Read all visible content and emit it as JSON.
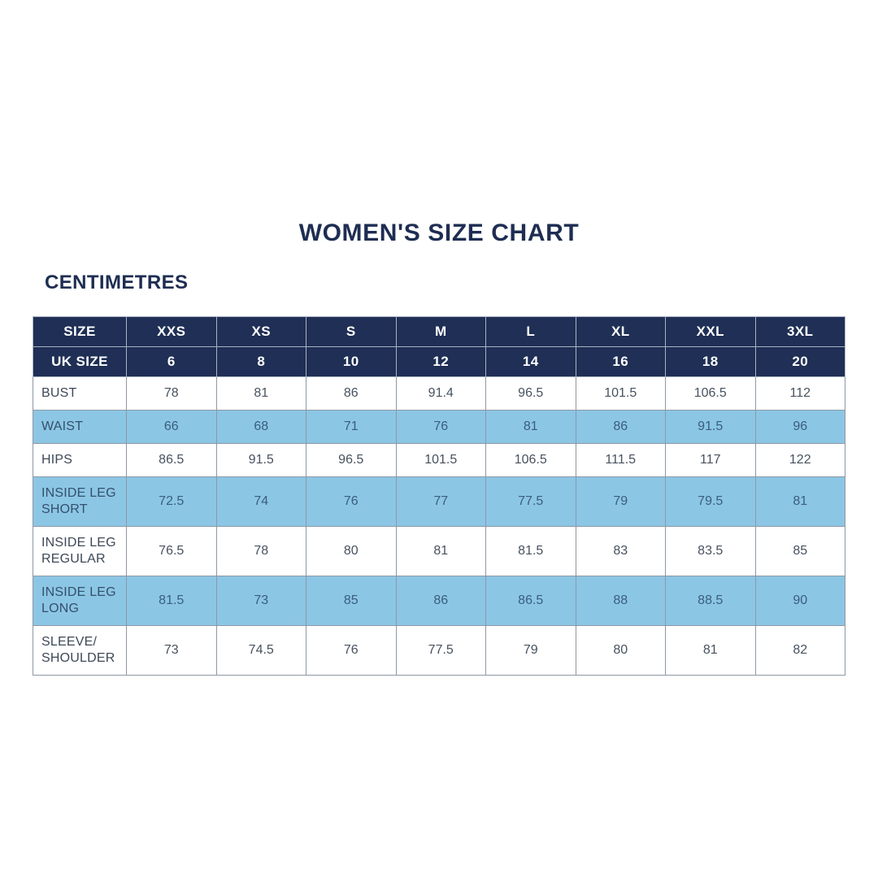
{
  "title": "WOMEN'S SIZE CHART",
  "units_label": "CENTIMETRES",
  "colors": {
    "header_navy": "#1f2f55",
    "highlight_blue": "#8cc6e5",
    "title_text": "#1e2d52",
    "body_text": "#47525f",
    "border": "#8e98a4"
  },
  "chart_data": {
    "type": "table",
    "title": "WOMEN'S SIZE CHART",
    "units": "CENTIMETRES",
    "header_rows": [
      [
        "SIZE",
        "XXS",
        "XS",
        "S",
        "M",
        "L",
        "XL",
        "XXL",
        "3XL"
      ],
      [
        "UK SIZE",
        "6",
        "8",
        "10",
        "12",
        "14",
        "16",
        "18",
        "20"
      ]
    ],
    "rows": [
      {
        "label": "BUST",
        "values": [
          "78",
          "81",
          "86",
          "91.4",
          "96.5",
          "101.5",
          "106.5",
          "112"
        ],
        "highlight": false
      },
      {
        "label": "WAIST",
        "values": [
          "66",
          "68",
          "71",
          "76",
          "81",
          "86",
          "91.5",
          "96"
        ],
        "highlight": true
      },
      {
        "label": "HIPS",
        "values": [
          "86.5",
          "91.5",
          "96.5",
          "101.5",
          "106.5",
          "111.5",
          "117",
          "122"
        ],
        "highlight": false
      },
      {
        "label": "INSIDE LEG SHORT",
        "values": [
          "72.5",
          "74",
          "76",
          "77",
          "77.5",
          "79",
          "79.5",
          "81"
        ],
        "highlight": true
      },
      {
        "label": "INSIDE LEG REGULAR",
        "values": [
          "76.5",
          "78",
          "80",
          "81",
          "81.5",
          "83",
          "83.5",
          "85"
        ],
        "highlight": false
      },
      {
        "label": "INSIDE LEG LONG",
        "values": [
          "81.5",
          "73",
          "85",
          "86",
          "86.5",
          "88",
          "88.5",
          "90"
        ],
        "highlight": true
      },
      {
        "label": "SLEEVE/SHOULDER",
        "values": [
          "73",
          "74.5",
          "76",
          "77.5",
          "79",
          "80",
          "81",
          "82"
        ],
        "highlight": false
      }
    ]
  }
}
